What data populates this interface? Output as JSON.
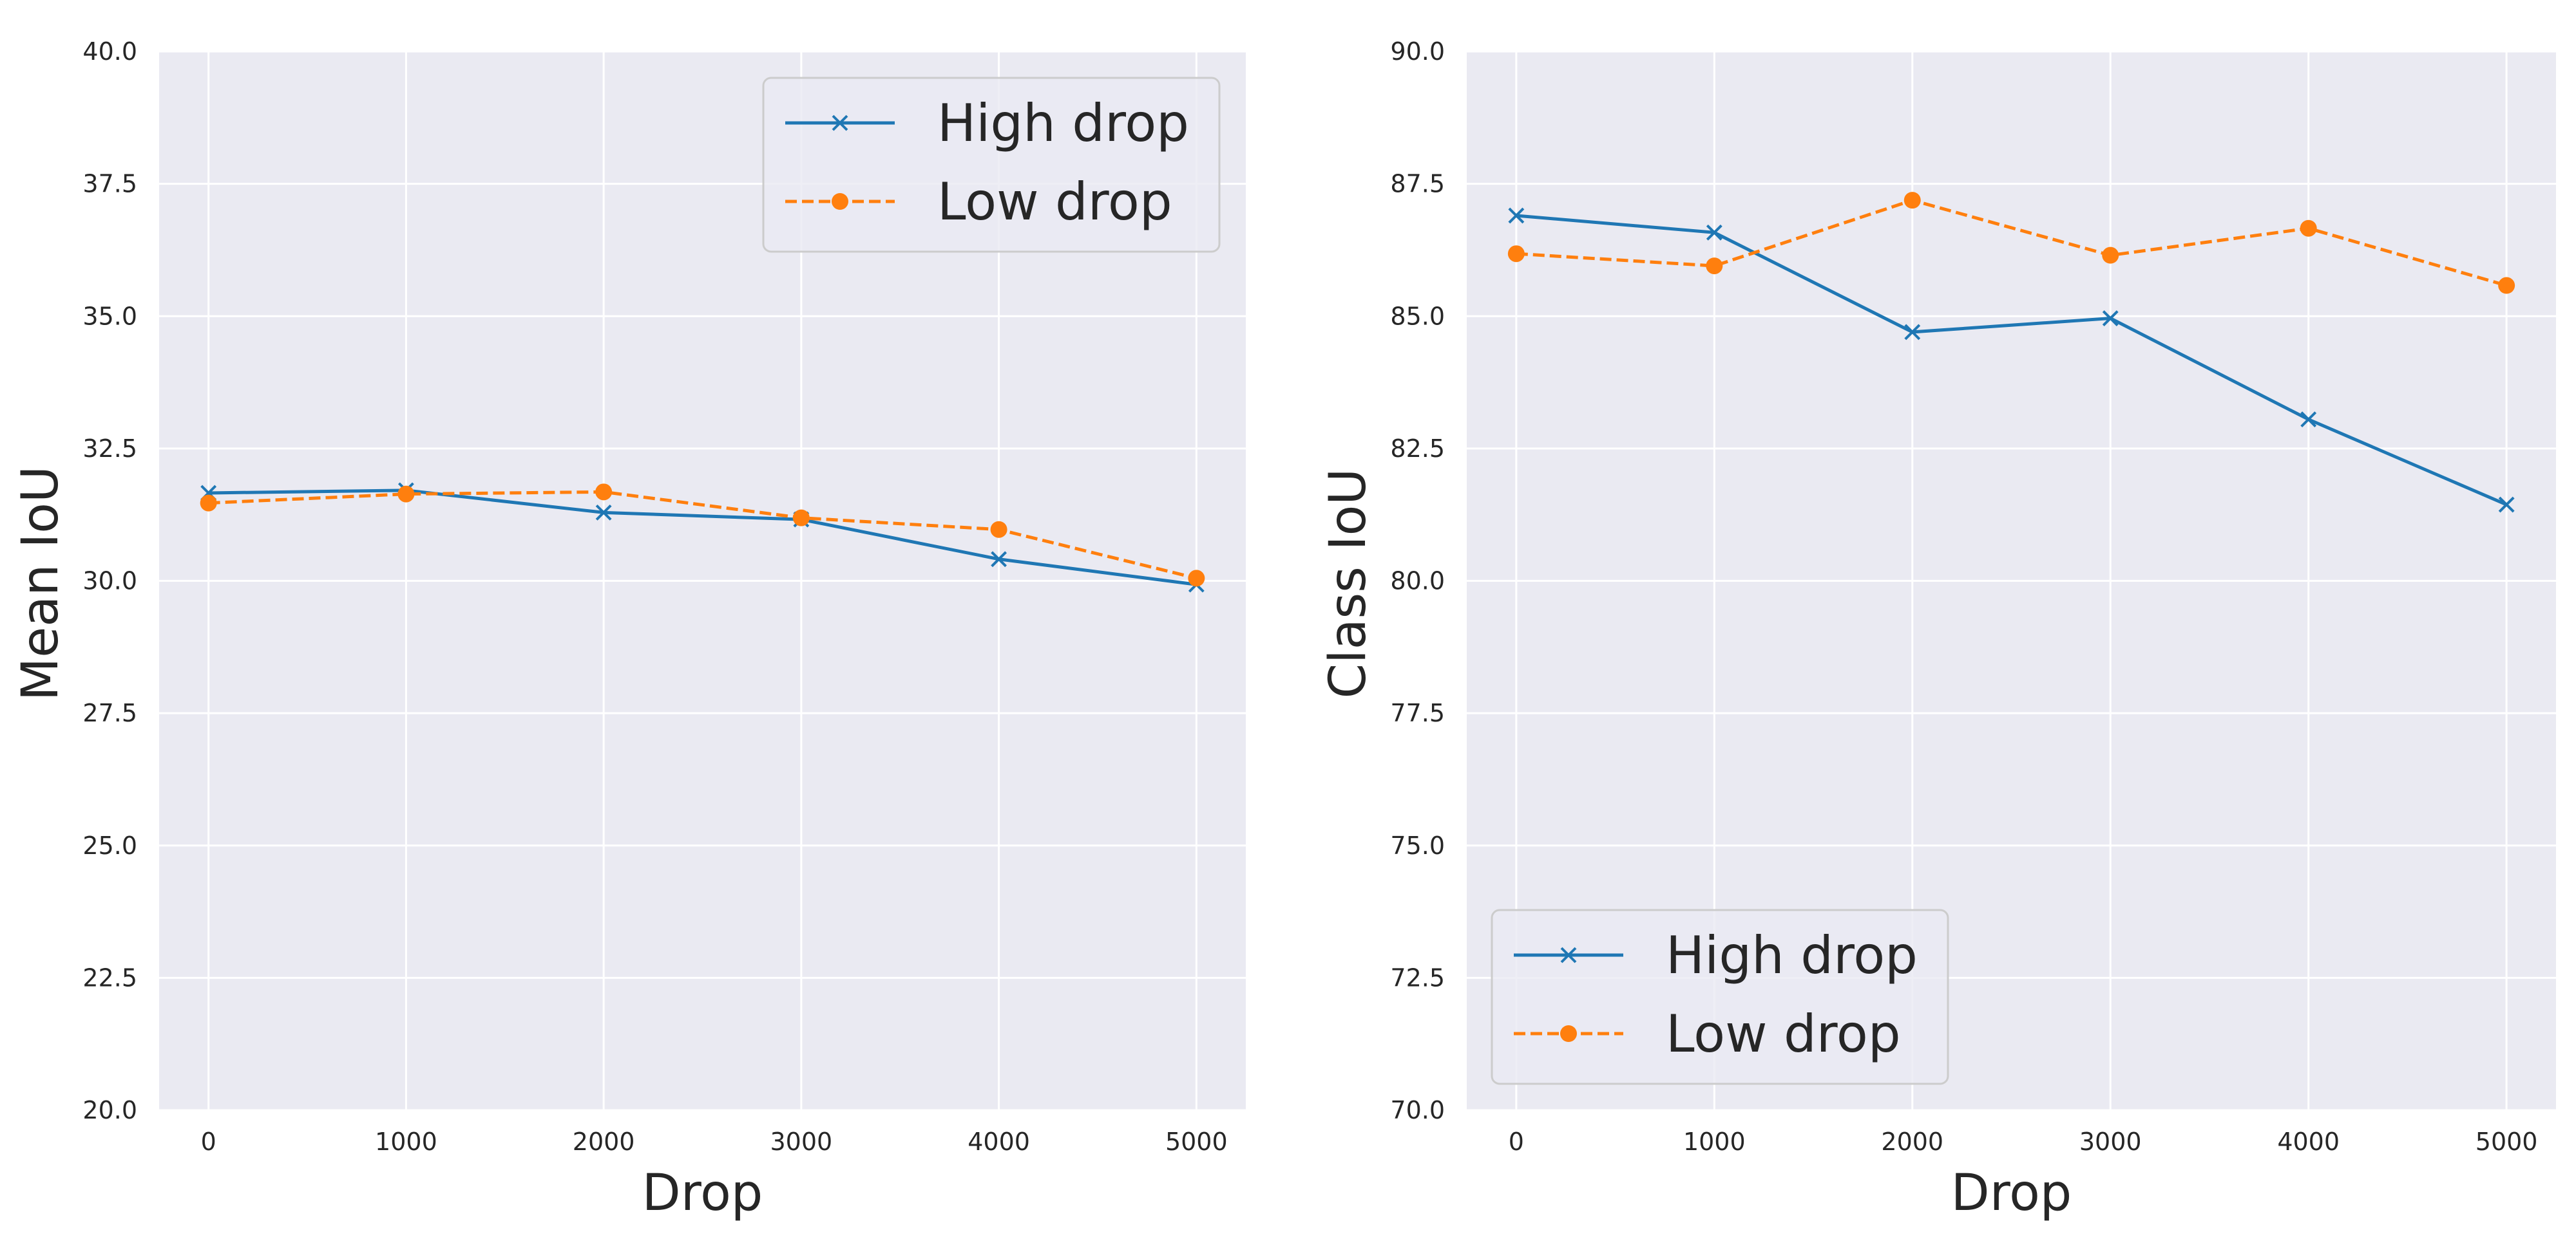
{
  "chart_data": [
    {
      "type": "line",
      "title": "",
      "xlabel": "Drop",
      "ylabel": "Mean IoU",
      "x": [
        0,
        1000,
        2000,
        3000,
        4000,
        5000
      ],
      "xticks": [
        "0",
        "1000",
        "2000",
        "3000",
        "4000",
        "5000"
      ],
      "xlim": [
        -250,
        5250
      ],
      "ylim": [
        20.0,
        40.0
      ],
      "yticks": [
        "20.0",
        "22.5",
        "25.0",
        "27.5",
        "30.0",
        "32.5",
        "35.0",
        "37.5",
        "40.0"
      ],
      "grid": true,
      "legend_position": "upper-right",
      "series": [
        {
          "name": "High drop",
          "style": "solid",
          "marker": "x",
          "color": "#1f77b4",
          "values": [
            31.66,
            31.71,
            31.29,
            31.16,
            30.41,
            29.93
          ]
        },
        {
          "name": "Low drop",
          "style": "dashed",
          "marker": "circle",
          "color": "#ff7f0e",
          "values": [
            31.47,
            31.64,
            31.68,
            31.19,
            30.97,
            30.05
          ]
        }
      ]
    },
    {
      "type": "line",
      "title": "",
      "xlabel": "Drop",
      "ylabel": "Class IoU",
      "x": [
        0,
        1000,
        2000,
        3000,
        4000,
        5000
      ],
      "xticks": [
        "0",
        "1000",
        "2000",
        "3000",
        "4000",
        "5000"
      ],
      "xlim": [
        -250,
        5250
      ],
      "ylim": [
        70.0,
        90.0
      ],
      "yticks": [
        "70.0",
        "72.5",
        "75.0",
        "77.5",
        "80.0",
        "82.5",
        "85.0",
        "87.5",
        "90.0"
      ],
      "grid": true,
      "legend_position": "lower-left",
      "series": [
        {
          "name": "High drop",
          "style": "solid",
          "marker": "x",
          "color": "#1f77b4",
          "values": [
            86.9,
            86.58,
            84.7,
            84.96,
            83.05,
            81.44
          ]
        },
        {
          "name": "Low drop",
          "style": "dashed",
          "marker": "circle",
          "color": "#ff7f0e",
          "values": [
            86.18,
            85.95,
            87.19,
            86.15,
            86.66,
            85.58
          ]
        }
      ]
    }
  ],
  "colors": {
    "plot_background": "#eaeaf2",
    "grid": "#ffffff",
    "text": "#262626"
  }
}
